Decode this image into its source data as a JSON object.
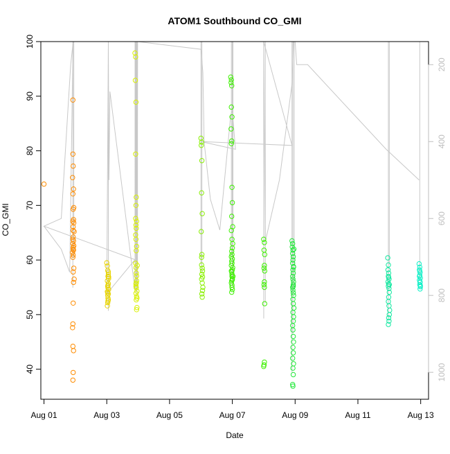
{
  "chart_data": {
    "type": "scatter",
    "title": "ATOM1 Southbound CO_GMI",
    "xlabel": "Date",
    "ylabel": "CO_GMI",
    "xlim": [
      -0.1,
      12.25
    ],
    "ylim": [
      34.5,
      100
    ],
    "y2lim": [
      1070,
      140
    ],
    "x_ticks": [
      0,
      2,
      4,
      6,
      8,
      10,
      12
    ],
    "x_tick_labels": [
      "Aug 01",
      "Aug 03",
      "Aug 05",
      "Aug 07",
      "Aug 09",
      "Aug 11",
      "Aug 13"
    ],
    "y_ticks": [
      40,
      50,
      60,
      70,
      80,
      90,
      100
    ],
    "y2_ticks": [
      200,
      400,
      600,
      800,
      1000
    ],
    "grid": false,
    "legend": "none",
    "colors": {
      "pressure_line": "#c8c8c8",
      "axis": "#000000",
      "right_axis": "#bebebe",
      "orange": "#ff8c00",
      "yellow_orange": "#e8d400",
      "yellow": "#d9f000",
      "lime": "#88f000",
      "green": "#3df000",
      "green2": "#22e83a",
      "teal": "#10e8a0",
      "cyan": "#10f0c8"
    },
    "series": [
      {
        "color": "orange",
        "x": [
          0.0,
          0.92,
          0.92,
          0.93,
          0.91,
          0.94,
          0.92,
          0.95,
          0.93,
          0.94,
          0.92,
          0.95,
          0.93,
          0.96,
          0.93,
          0.94,
          0.92,
          0.95,
          0.93,
          0.94,
          0.91,
          0.93,
          0.92,
          0.95,
          0.93,
          0.96,
          0.94,
          0.93,
          0.92,
          0.91,
          0.92,
          0.94,
          0.93,
          0.92,
          0.93,
          0.92,
          0.93
        ],
        "y": [
          73.9,
          89.3,
          79.4,
          77.2,
          75.1,
          73.0,
          72.1,
          69.6,
          69.3,
          67.4,
          67.1,
          66.8,
          65.4,
          65.2,
          64.2,
          63.5,
          63.0,
          62.6,
          62.3,
          61.8,
          61.4,
          60.9,
          60.5,
          58.5,
          57.8,
          56.5,
          55.9,
          52.1,
          48.3,
          47.6,
          44.2,
          43.4,
          39.4,
          38.0,
          66.1,
          63.8,
          62.0
        ]
      },
      {
        "color": "yellow_orange",
        "x": [
          2.0,
          2.02,
          2.03,
          2.05,
          2.04,
          2.06,
          2.02,
          2.05,
          2.03,
          2.04,
          2.06,
          2.02,
          2.05,
          2.03,
          2.04,
          2.05,
          2.03,
          2.02,
          2.06,
          2.04,
          2.05,
          2.03,
          2.04
        ],
        "y": [
          59.5,
          58.9,
          58.1,
          57.4,
          57.0,
          56.6,
          56.2,
          55.7,
          55.2,
          54.9,
          54.6,
          54.2,
          53.8,
          53.5,
          53.0,
          52.7,
          52.2,
          51.6,
          56.9,
          55.4,
          57.8,
          54.0,
          52.5
        ]
      },
      {
        "color": "yellow",
        "x": [
          2.9,
          2.92,
          2.91,
          2.93,
          2.92,
          2.94,
          2.93,
          2.92,
          2.95,
          2.93,
          2.94,
          2.92,
          2.93,
          2.95,
          2.94,
          2.92,
          2.93,
          2.94,
          2.95,
          2.93,
          2.94,
          2.96,
          2.93,
          2.95,
          2.94,
          2.96,
          2.95,
          2.93,
          2.97,
          2.95,
          2.96,
          2.94
        ],
        "y": [
          97.9,
          97.2,
          92.9,
          88.9,
          79.4,
          71.5,
          70.0,
          67.6,
          67.1,
          66.4,
          65.8,
          64.6,
          63.8,
          62.5,
          61.7,
          59.4,
          58.6,
          57.6,
          56.2,
          55.6,
          54.9,
          54.3,
          53.9,
          53.3,
          52.7,
          51.3,
          50.9,
          55.2,
          59.0,
          57.1,
          53.0,
          55.8
        ]
      },
      {
        "color": "lime",
        "x": [
          5.0,
          5.02,
          5.01,
          5.03,
          5.02,
          5.04,
          5.01,
          5.03,
          5.02,
          5.04,
          5.05,
          5.03,
          5.02,
          5.04,
          5.06,
          5.05,
          5.03,
          5.04,
          5.02,
          5.05
        ],
        "y": [
          82.3,
          81.6,
          81.0,
          78.2,
          72.3,
          68.5,
          65.2,
          61.0,
          59.1,
          58.5,
          58.0,
          57.4,
          56.5,
          55.8,
          55.0,
          54.4,
          53.8,
          53.2,
          60.5,
          56.9
        ]
      },
      {
        "color": "green",
        "x": [
          5.95,
          5.97,
          5.96,
          5.98,
          5.97,
          5.99,
          5.96,
          5.98,
          5.97,
          5.99,
          6.0,
          5.98,
          5.97,
          5.99,
          6.01,
          6.0,
          5.98,
          5.99,
          5.97,
          6.0,
          5.98,
          5.99,
          5.97,
          6.01,
          6.0,
          5.98,
          5.99,
          6.02,
          6.0,
          5.98,
          5.97,
          5.99,
          5.99,
          6.0,
          5.98,
          6.01,
          5.97,
          5.99,
          6.0
        ],
        "y": [
          93.5,
          93.0,
          92.5,
          91.9,
          88.0,
          86.2,
          84.0,
          81.8,
          81.3,
          73.3,
          70.5,
          68.0,
          65.4,
          63.8,
          63.0,
          62.2,
          61.6,
          61.0,
          60.6,
          60.2,
          59.8,
          59.4,
          59.0,
          58.6,
          58.2,
          57.8,
          57.4,
          57.0,
          56.6,
          56.2,
          55.8,
          55.4,
          55.0,
          54.6,
          54.1,
          66.1,
          58.0,
          57.0,
          56.4
        ]
      },
      {
        "color": "green",
        "x": [
          7.0,
          7.02,
          7.01,
          7.03,
          7.02,
          7.01,
          7.03,
          7.02,
          7.01,
          7.02,
          7.03,
          7.02,
          7.01,
          7.0
        ],
        "y": [
          63.8,
          63.2,
          61.8,
          61.0,
          59.0,
          58.5,
          58.0,
          56.0,
          55.5,
          55.0,
          52.0,
          41.3,
          40.8,
          40.5
        ]
      },
      {
        "color": "green2",
        "x": [
          7.9,
          7.92,
          7.91,
          7.93,
          7.92,
          7.94,
          7.93,
          7.92,
          7.95,
          7.93,
          7.94,
          7.92,
          7.93,
          7.95,
          7.94,
          7.92,
          7.93,
          7.94,
          7.95,
          7.93,
          7.94,
          7.96,
          7.93,
          7.95,
          7.94,
          7.92,
          7.93,
          7.94,
          7.95,
          7.93,
          7.94,
          7.92,
          7.95,
          7.93,
          7.94,
          7.92,
          7.93,
          7.94,
          7.95,
          7.96
        ],
        "y": [
          63.5,
          63.0,
          62.4,
          61.8,
          61.2,
          60.6,
          60.0,
          59.4,
          58.8,
          58.2,
          57.6,
          57.0,
          56.5,
          56.0,
          55.5,
          55.0,
          54.5,
          54.0,
          53.5,
          52.8,
          52.0,
          51.2,
          50.4,
          49.6,
          48.8,
          48.0,
          47.2,
          46.0,
          45.0,
          44.0,
          43.0,
          42.0,
          41.0,
          40.2,
          39.0,
          37.2,
          36.9,
          55.2,
          58.7,
          62.0
        ]
      },
      {
        "color": "teal",
        "x": [
          10.95,
          10.97,
          10.96,
          10.98,
          10.97,
          10.99,
          10.96,
          10.98,
          10.97,
          10.99,
          11.0,
          10.98,
          10.97,
          10.99,
          11.01,
          11.0,
          10.98,
          10.99,
          10.97,
          11.0,
          10.98
        ],
        "y": [
          60.4,
          59.1,
          58.2,
          57.6,
          57.0,
          56.5,
          56.0,
          55.6,
          55.2,
          54.8,
          54.1,
          53.2,
          52.4,
          51.6,
          50.8,
          50.0,
          49.4,
          48.8,
          48.2,
          55.5,
          56.8
        ]
      },
      {
        "color": "cyan",
        "x": [
          11.95,
          11.97,
          11.96,
          11.98,
          11.97,
          11.99,
          11.96,
          11.98,
          11.97,
          11.99,
          11.98,
          11.97,
          11.96,
          11.98,
          11.99
        ],
        "y": [
          59.3,
          58.7,
          58.2,
          57.7,
          57.2,
          56.7,
          56.3,
          55.9,
          55.5,
          55.1,
          54.7,
          58.0,
          57.0,
          56.0,
          55.3
        ]
      }
    ],
    "pressure_line": {
      "x": [
        0.0,
        0.55,
        0.82,
        0.92,
        0.93,
        0.85,
        0.55,
        0.0,
        2.9,
        2.0,
        2.05,
        2.07,
        2.1,
        2.9,
        2.92,
        2.93,
        2.94,
        2.95,
        2.96,
        2.97,
        2.98,
        5.0,
        5.02,
        5.04,
        5.06,
        5.08,
        5.1,
        5.3,
        5.6,
        5.95,
        6.0,
        6.1,
        5.0,
        7.9,
        7.0,
        7.05,
        7.5,
        7.9,
        7.95,
        8.0,
        8.05,
        8.4,
        10.9,
        11.95
      ],
      "y": [
        620,
        680,
        740,
        160,
        140,
        200,
        600,
        620,
        707,
        796,
        140,
        500,
        270,
        786,
        140,
        760,
        140,
        760,
        140,
        760,
        140,
        160,
        170,
        200,
        220,
        300,
        400,
        550,
        630,
        330,
        320,
        420,
        400,
        410,
        140,
        660,
        500,
        250,
        140,
        140,
        200,
        200,
        420,
        500
      ]
    },
    "drops": [
      {
        "x": 0.92,
        "ytop": 140,
        "ybot": 780
      },
      {
        "x": 0.95,
        "ytop": 140,
        "ybot": 700
      },
      {
        "x": 2.05,
        "ytop": 140,
        "ybot": 840
      },
      {
        "x": 2.9,
        "ytop": 140,
        "ybot": 700
      },
      {
        "x": 2.93,
        "ytop": 140,
        "ybot": 790
      },
      {
        "x": 2.96,
        "ytop": 140,
        "ybot": 800
      },
      {
        "x": 2.98,
        "ytop": 140,
        "ybot": 780
      },
      {
        "x": 5.0,
        "ytop": 140,
        "ybot": 720
      },
      {
        "x": 5.03,
        "ytop": 140,
        "ybot": 740
      },
      {
        "x": 5.97,
        "ytop": 140,
        "ybot": 700
      },
      {
        "x": 6.0,
        "ytop": 140,
        "ybot": 780
      },
      {
        "x": 6.02,
        "ytop": 140,
        "ybot": 760
      },
      {
        "x": 7.0,
        "ytop": 140,
        "ybot": 860
      },
      {
        "x": 7.05,
        "ytop": 140,
        "ybot": 820
      },
      {
        "x": 7.9,
        "ytop": 140,
        "ybot": 1000
      },
      {
        "x": 7.93,
        "ytop": 140,
        "ybot": 900
      },
      {
        "x": 7.97,
        "ytop": 140,
        "ybot": 780
      },
      {
        "x": 10.97,
        "ytop": 140,
        "ybot": 860
      },
      {
        "x": 11.0,
        "ytop": 140,
        "ybot": 720
      },
      {
        "x": 11.97,
        "ytop": 140,
        "ybot": 760
      }
    ]
  }
}
